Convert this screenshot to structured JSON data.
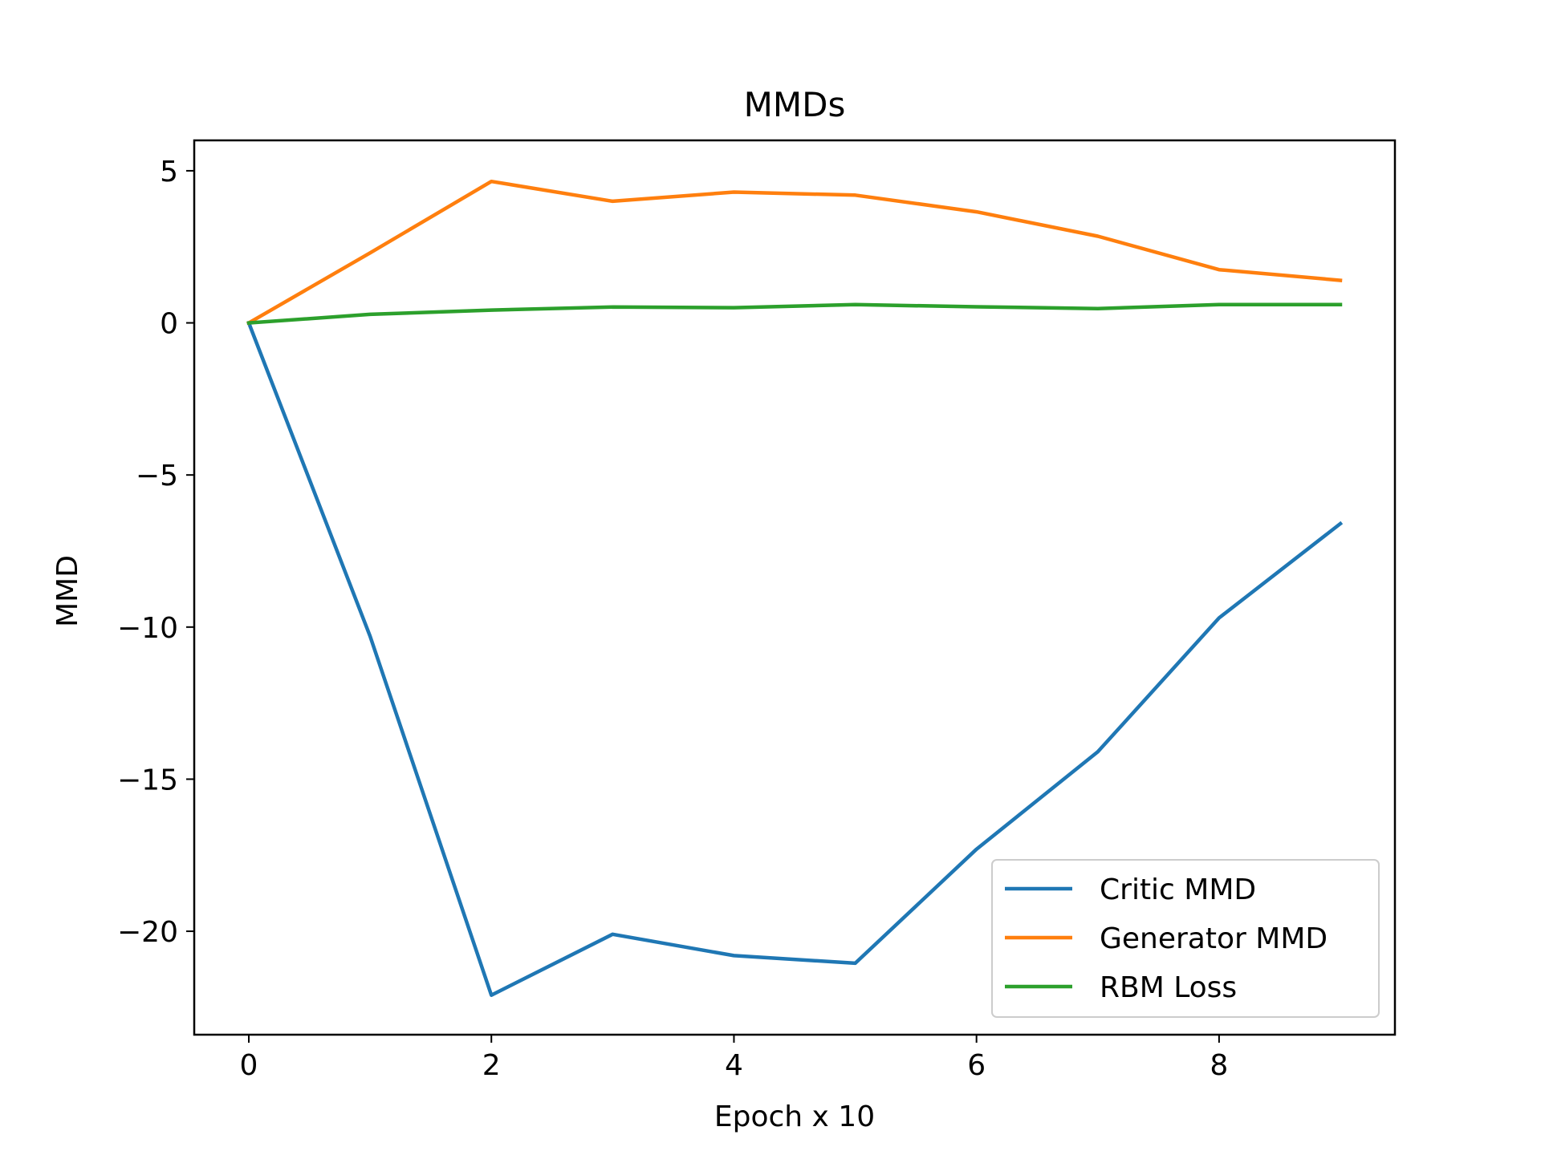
{
  "chart_data": {
    "type": "line",
    "title": "MMDs",
    "xlabel": "Epoch x 10",
    "ylabel": "MMD",
    "xlim": [
      -0.45,
      9.45
    ],
    "ylim": [
      -23.4,
      6.0
    ],
    "xticks": [
      0,
      2,
      4,
      6,
      8
    ],
    "yticks": [
      5,
      0,
      -5,
      -10,
      -15,
      -20
    ],
    "x": [
      0,
      1,
      2,
      3,
      4,
      5,
      6,
      7,
      8,
      9
    ],
    "series": [
      {
        "name": "Critic MMD",
        "color": "#1f77b4",
        "values": [
          0,
          -10.3,
          -22.1,
          -20.1,
          -20.8,
          -21.05,
          -17.3,
          -14.1,
          -9.7,
          -6.6
        ]
      },
      {
        "name": "Generator MMD",
        "color": "#ff7f0e",
        "values": [
          0,
          2.3,
          4.65,
          4.0,
          4.3,
          4.2,
          3.65,
          2.85,
          1.75,
          1.4
        ]
      },
      {
        "name": "RBM Loss",
        "color": "#2ca02c",
        "values": [
          0,
          0.28,
          0.42,
          0.52,
          0.5,
          0.6,
          0.53,
          0.47,
          0.6,
          0.6
        ]
      }
    ],
    "grid": false,
    "legend_position": "lower-right"
  }
}
